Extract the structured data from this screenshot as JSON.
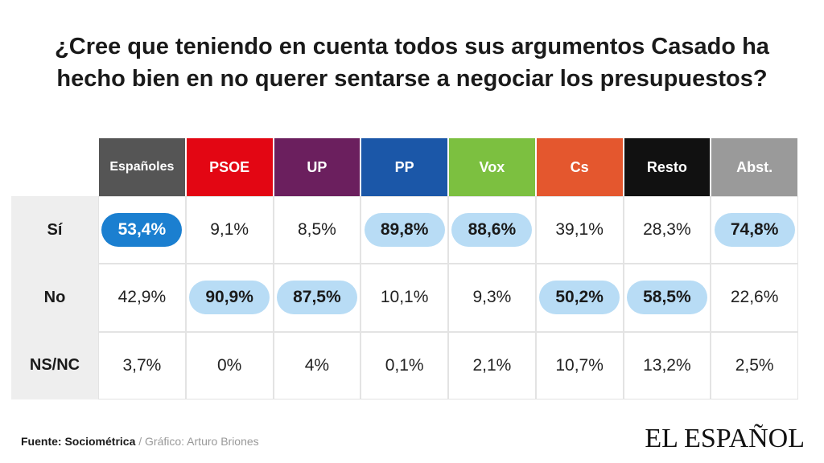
{
  "title_lines": [
    "¿Cree que teniendo en cuenta todos sus argumentos Casado ha",
    "hecho bien en no querer sentarse a negociar los presupuestos?"
  ],
  "footer": {
    "source_label": "Fuente: Sociométrica",
    "separator": " / ",
    "credit": "Gráfico: Arturo Briones"
  },
  "brand": "EL ESPAÑOL",
  "colors": {
    "Españoles": "#555555",
    "PSOE": "#e30613",
    "UP": "#6b1f5e",
    "PP": "#1b57a8",
    "Vox": "#7cc040",
    "Cs": "#e4572e",
    "Resto": "#111111",
    "Abst.": "#9a9a9a",
    "highlight_strong": "#1b7fd0",
    "highlight_light": "#b8dcf5"
  },
  "chart_data": {
    "type": "table",
    "title": "¿Cree que teniendo en cuenta todos sus argumentos Casado ha hecho bien en no querer sentarse a negociar los presupuestos?",
    "columns": [
      "Españoles",
      "PSOE",
      "UP",
      "PP",
      "Vox",
      "Cs",
      "Resto",
      "Abst."
    ],
    "rows": [
      {
        "label": "Sí",
        "values": [
          "53,4%",
          "9,1%",
          "8,5%",
          "89,8%",
          "88,6%",
          "39,1%",
          "28,3%",
          "74,8%"
        ],
        "highlight": [
          "strong",
          "",
          "",
          "light",
          "light",
          "",
          "",
          "light"
        ]
      },
      {
        "label": "No",
        "values": [
          "42,9%",
          "90,9%",
          "87,5%",
          "10,1%",
          "9,3%",
          "50,2%",
          "58,5%",
          "22,6%"
        ],
        "highlight": [
          "",
          "light",
          "light",
          "",
          "",
          "light",
          "light",
          ""
        ]
      },
      {
        "label": "NS/NC",
        "values": [
          "3,7%",
          "0%",
          "4%",
          "0,1%",
          "2,1%",
          "10,7%",
          "13,2%",
          "2,5%"
        ],
        "highlight": [
          "",
          "",
          "",
          "",
          "",
          "",
          "",
          ""
        ]
      }
    ]
  }
}
